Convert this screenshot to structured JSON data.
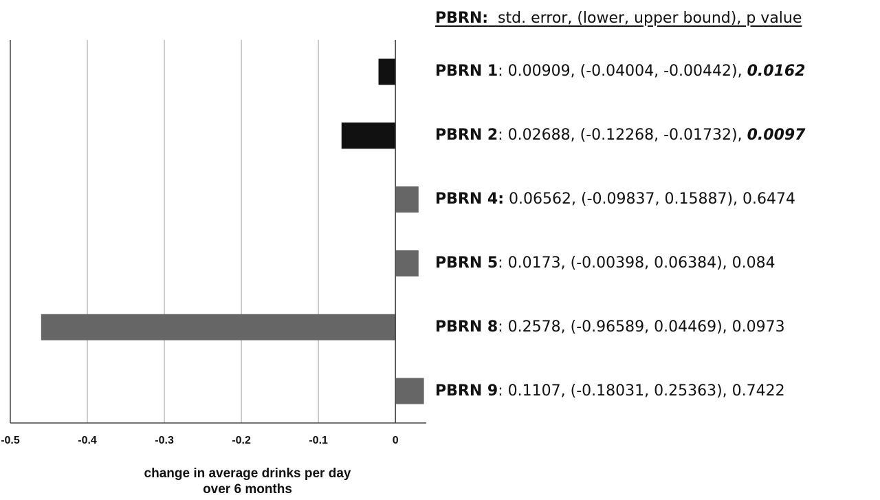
{
  "chart_data": {
    "type": "bar",
    "orientation": "horizontal",
    "categories": [
      "PBRN 1",
      "PBRN 2",
      "PBRN 4",
      "PBRN 5",
      "PBRN 8",
      "PBRN 9"
    ],
    "values": [
      -0.022,
      -0.07,
      0.03,
      0.03,
      -0.46,
      0.037
    ],
    "bar_colors": [
      "#111111",
      "#111111",
      "#666666",
      "#666666",
      "#666666",
      "#666666"
    ],
    "xlim": [
      -0.5,
      0.04
    ],
    "xticks": [
      "-0.5",
      "-0.4",
      "-0.3",
      "-0.2",
      "-0.1",
      "0"
    ],
    "xtick_values": [
      -0.5,
      -0.4,
      -0.3,
      -0.2,
      -0.1,
      0
    ],
    "xlabel_line1": "change in average drinks per day",
    "xlabel_line2": "over 6 months",
    "grid": "vertical",
    "stats_header_bold": "PBRN:",
    "stats_header_rest": "std. error, (lower, upper bound), p value",
    "stats": [
      {
        "name": "PBRN 1",
        "sep": ":",
        "se": "0.00909",
        "ci": "(-0.04004, -0.00442)",
        "p": "0.0162",
        "significant": true
      },
      {
        "name": "PBRN 2",
        "sep": ":",
        "se": "0.02688",
        "ci": "(-0.12268, -0.01732)",
        "p": "0.0097",
        "significant": true
      },
      {
        "name": "PBRN 4:",
        "sep": "",
        "se": "0.06562",
        "ci": "(-0.09837, 0.15887)",
        "p": "0.6474",
        "significant": false
      },
      {
        "name": "PBRN 5",
        "sep": ":",
        "se": "0.0173",
        "ci": "(-0.00398, 0.06384)",
        "p": "0.084",
        "significant": false
      },
      {
        "name": "PBRN 8",
        "sep": ":",
        "se": "0.2578",
        "ci": "(-0.96589, 0.04469)",
        "p": "0.0973",
        "significant": false
      },
      {
        "name": "PBRN 9",
        "sep": ":",
        "se": "0.1107",
        "ci": "(-0.18031, 0.25363)",
        "p": "0.7422",
        "significant": false
      }
    ]
  }
}
